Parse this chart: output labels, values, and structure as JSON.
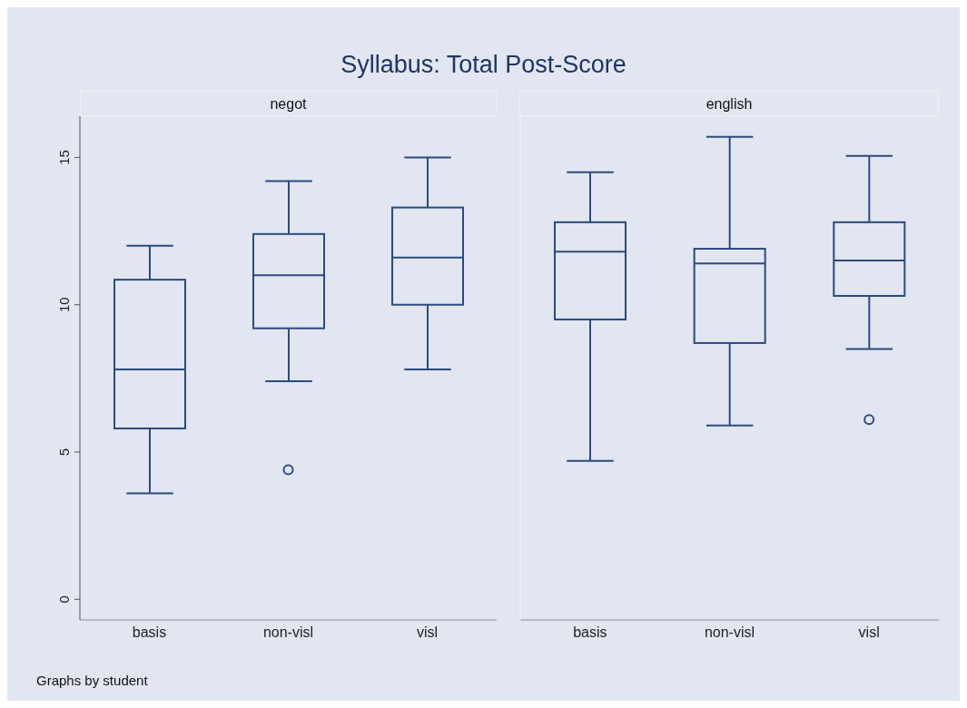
{
  "chart_data": [
    {
      "type": "box",
      "title": "Syllabus: Total Post-Score",
      "subtitle": "negot",
      "annotations": [
        "Graphs by student"
      ],
      "color": "#2b4a80",
      "categories": [
        "basis",
        "non-visl",
        "visl"
      ],
      "boxes": [
        {
          "low": 3.6,
          "q1": 5.8,
          "median": 7.8,
          "q3": 10.85,
          "high": 12.0
        },
        {
          "low": 7.4,
          "q1": 9.2,
          "median": 11.0,
          "q3": 12.4,
          "high": 14.2,
          "outliers": [
            4.4
          ]
        },
        {
          "low": 7.8,
          "q1": 10.0,
          "median": 11.6,
          "q3": 13.3,
          "high": 15.0
        }
      ],
      "ylim": [
        -0.7,
        16.4
      ],
      "yticks": [
        0,
        5,
        10,
        15
      ]
    },
    {
      "type": "box",
      "subtitle": "english",
      "color": "#2b4a80",
      "categories": [
        "basis",
        "non-visl",
        "visl"
      ],
      "boxes": [
        {
          "low": 4.7,
          "q1": 9.5,
          "median": 11.8,
          "q3": 12.8,
          "high": 14.5
        },
        {
          "low": 5.9,
          "q1": 8.7,
          "median": 11.4,
          "q3": 11.9,
          "high": 15.7
        },
        {
          "low": 8.5,
          "q1": 10.3,
          "median": 11.5,
          "q3": 12.8,
          "high": 15.05,
          "outliers": [
            6.1
          ]
        }
      ],
      "ylim": [
        -0.7,
        16.4
      ],
      "yticks": [
        0,
        5,
        10,
        15
      ],
      "tick_labels": "x"
    }
  ]
}
